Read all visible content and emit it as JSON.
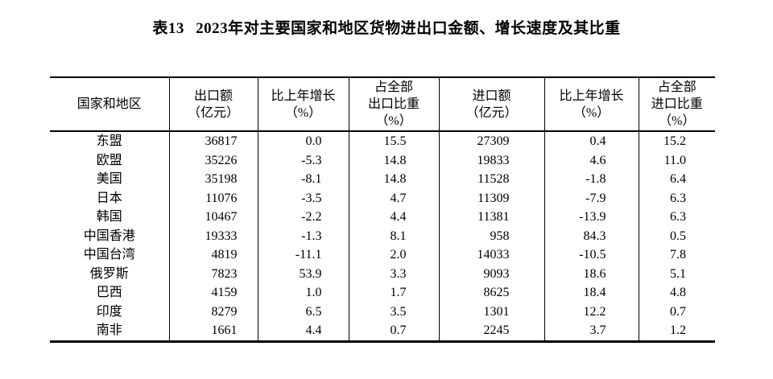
{
  "colors": {
    "page_background": "#ffffff",
    "text": "#000000",
    "border": "#000000"
  },
  "title": {
    "prefix": "表13",
    "text": "2023年对主要国家和地区货物进出口金额、增长速度及其比重"
  },
  "table": {
    "columns": [
      {
        "id": "region",
        "label_lines": [
          "国家和地区"
        ]
      },
      {
        "id": "export-value",
        "label_lines": [
          "出口额",
          "（亿元）"
        ]
      },
      {
        "id": "export-growth",
        "label_lines": [
          "比上年增长",
          "（%）"
        ]
      },
      {
        "id": "export-share",
        "label_lines": [
          "占全部",
          "出口比重",
          "（%）"
        ]
      },
      {
        "id": "import-value",
        "label_lines": [
          "进口额",
          "（亿元）"
        ]
      },
      {
        "id": "import-growth",
        "label_lines": [
          "比上年增长",
          "（%）"
        ]
      },
      {
        "id": "import-share",
        "label_lines": [
          "占全部",
          "进口比重",
          "（%）"
        ]
      }
    ],
    "rows": [
      {
        "region": "东盟",
        "values": [
          "36817",
          "0.0",
          "15.5",
          "27309",
          "0.4",
          "15.2"
        ]
      },
      {
        "region": "欧盟",
        "values": [
          "35226",
          "-5.3",
          "14.8",
          "19833",
          "4.6",
          "11.0"
        ]
      },
      {
        "region": "美国",
        "values": [
          "35198",
          "-8.1",
          "14.8",
          "11528",
          "-1.8",
          "6.4"
        ]
      },
      {
        "region": "日本",
        "values": [
          "11076",
          "-3.5",
          "4.7",
          "11309",
          "-7.9",
          "6.3"
        ]
      },
      {
        "region": "韩国",
        "values": [
          "10467",
          "-2.2",
          "4.4",
          "11381",
          "-13.9",
          "6.3"
        ]
      },
      {
        "region": "中国香港",
        "values": [
          "19333",
          "-1.3",
          "8.1",
          "958",
          "84.3",
          "0.5"
        ]
      },
      {
        "region": "中国台湾",
        "values": [
          "4819",
          "-11.1",
          "2.0",
          "14033",
          "-10.5",
          "7.8"
        ]
      },
      {
        "region": "俄罗斯",
        "values": [
          "7823",
          "53.9",
          "3.3",
          "9093",
          "18.6",
          "5.1"
        ]
      },
      {
        "region": "巴西",
        "values": [
          "4159",
          "1.0",
          "1.7",
          "8625",
          "18.4",
          "4.8"
        ]
      },
      {
        "region": "印度",
        "values": [
          "8279",
          "6.5",
          "3.5",
          "1301",
          "12.2",
          "0.7"
        ]
      },
      {
        "region": "南非",
        "values": [
          "1661",
          "4.4",
          "0.7",
          "2245",
          "3.7",
          "1.2"
        ]
      }
    ]
  }
}
